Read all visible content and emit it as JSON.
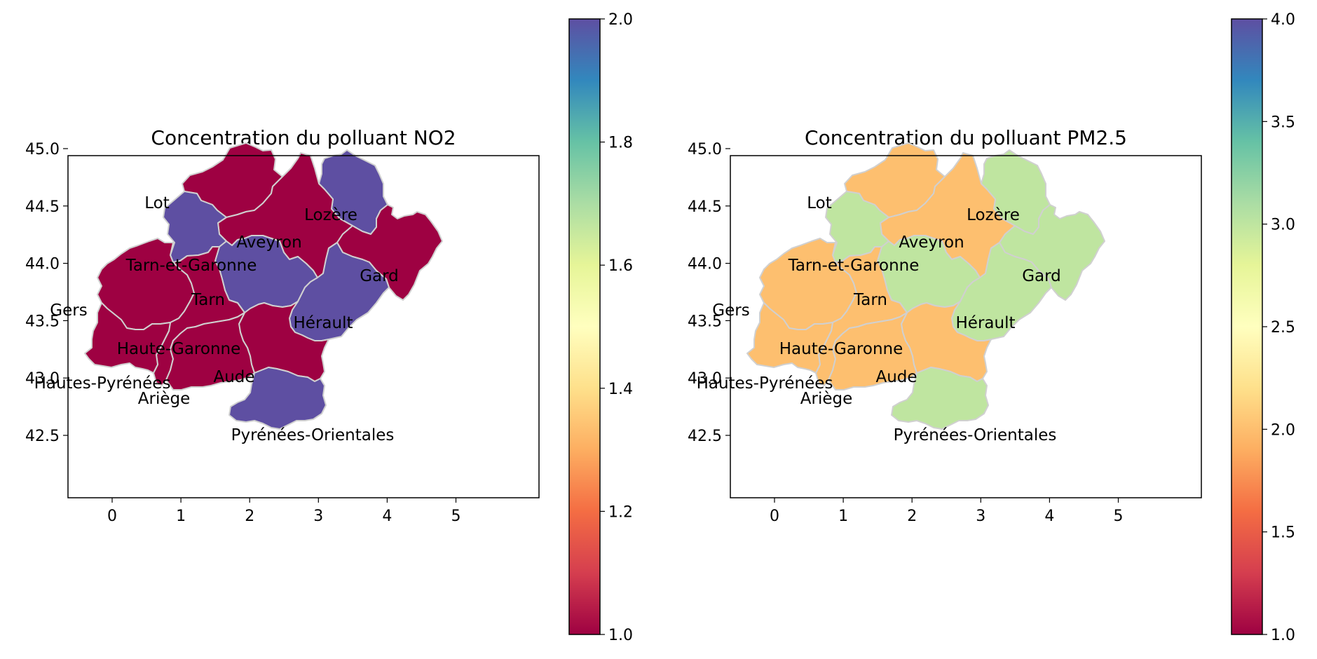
{
  "colors": {
    "spectral": [
      "#9e0142",
      "#d53e4f",
      "#f46d43",
      "#fdae61",
      "#fee08b",
      "#ffffbf",
      "#e6f598",
      "#abdda4",
      "#66c2a5",
      "#3288bd",
      "#5e4fa2"
    ],
    "border": "#d0d0d0"
  },
  "panels": [
    {
      "title": "Concentration du polluant NO2",
      "x_ticks": [
        "0",
        "1",
        "2",
        "3",
        "4",
        "5"
      ],
      "y_ticks": [
        "42.5",
        "43.0",
        "43.5",
        "44.0",
        "44.5",
        "45.0"
      ],
      "colorbar": {
        "min": 1.0,
        "max": 2.0,
        "ticks": [
          "1.0",
          "1.2",
          "1.4",
          "1.6",
          "1.8",
          "2.0"
        ]
      }
    },
    {
      "title": "Concentration du polluant PM2.5",
      "x_ticks": [
        "0",
        "1",
        "2",
        "3",
        "4",
        "5"
      ],
      "y_ticks": [
        "42.5",
        "43.0",
        "43.5",
        "44.0",
        "44.5",
        "45.0"
      ],
      "colorbar": {
        "min": 1.0,
        "max": 4.0,
        "ticks": [
          "1.0",
          "1.5",
          "2.0",
          "2.5",
          "3.0",
          "3.5",
          "4.0"
        ]
      }
    }
  ],
  "departments": [
    {
      "name": "Lot",
      "no2": 1,
      "pm25": 2
    },
    {
      "name": "Lozère",
      "no2": 2,
      "pm25": 3
    },
    {
      "name": "Aveyron",
      "no2": 1,
      "pm25": 2
    },
    {
      "name": "Tarn-et-Garonne",
      "no2": 2,
      "pm25": 3
    },
    {
      "name": "Gard",
      "no2": 1,
      "pm25": 3
    },
    {
      "name": "Tarn",
      "no2": 2,
      "pm25": 3
    },
    {
      "name": "Gers",
      "no2": 1,
      "pm25": 2
    },
    {
      "name": "Hérault",
      "no2": 2,
      "pm25": 3
    },
    {
      "name": "Haute-Garonne",
      "no2": 1,
      "pm25": 2
    },
    {
      "name": "Aude",
      "no2": 1,
      "pm25": 2
    },
    {
      "name": "Hautes-Pyrénées",
      "no2": 1,
      "pm25": 2
    },
    {
      "name": "Ariège",
      "no2": 1,
      "pm25": 2
    },
    {
      "name": "Pyrénées-Orientales",
      "no2": 2,
      "pm25": 3
    }
  ]
}
